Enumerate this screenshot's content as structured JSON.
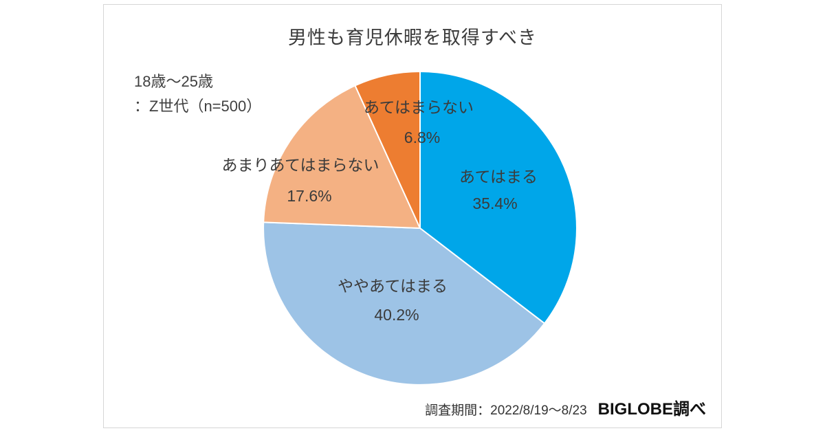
{
  "card": {
    "title": "男性も育児休暇を取得すべき",
    "subtitle_line1": "18歳〜25歳",
    "subtitle_line2": "：Z世代（n=500）",
    "footer_period": "調査期間：2022/8/19〜8/23",
    "footer_source": "BIGLOBE調べ"
  },
  "chart_data": {
    "type": "pie",
    "title": "男性も育児休暇を取得すべき",
    "group": "18歳〜25歳：Z世代（n=500）",
    "n": 500,
    "unit": "%",
    "start_angle": "12-oclock-clockwise",
    "labels": [
      "あてはまる",
      "ややあてはまる",
      "あまりあてはまらない",
      "あてはまらない"
    ],
    "values": [
      35.4,
      40.2,
      17.6,
      6.8
    ],
    "colors": [
      "#00A6E9",
      "#9DC3E6",
      "#F4B183",
      "#ED7D31"
    ],
    "legend": "none",
    "label_style": "category name with percentage beneath, dark gray text"
  }
}
